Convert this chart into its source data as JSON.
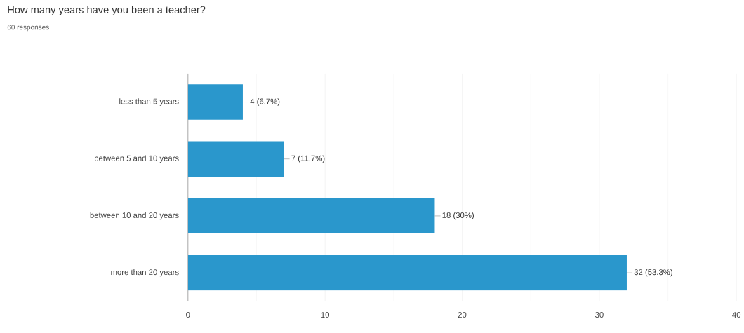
{
  "chart_data": {
    "type": "bar",
    "orientation": "horizontal",
    "title": "How many years have you been a teacher?",
    "subtitle": "60 responses",
    "categories": [
      "less than 5 years",
      "between 5 and 10 years",
      "between 10 and 20 years",
      "more than 20 years"
    ],
    "values": [
      4,
      7,
      18,
      32
    ],
    "value_labels": [
      "4 (6.7%)",
      "7 (11.7%)",
      "18 (30%)",
      "32 (53.3%)"
    ],
    "color": "#2a97cc",
    "xlim": [
      0,
      40
    ],
    "xticks": [
      0,
      10,
      20,
      30,
      40
    ],
    "grid": "x"
  }
}
